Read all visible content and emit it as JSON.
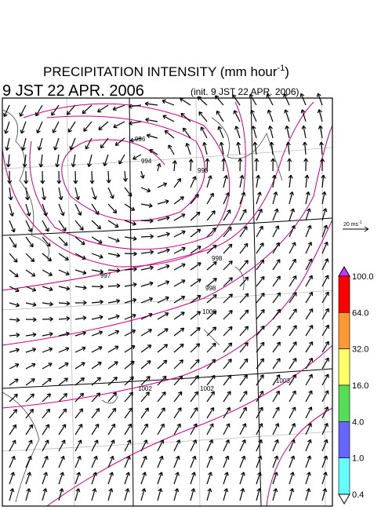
{
  "header": {
    "title": "PRECIPITATION INTENSITY (mm hour",
    "title_sup": "-1",
    "title_end": ")",
    "valid_time": "9 JST 22 APR. 2006",
    "init_time": "(init. 9 JST 22 APR. 2006)"
  },
  "legend": {
    "vector_scale": "20 ms",
    "vector_scale_sup": "-1"
  },
  "colorbar": {
    "labels": [
      "100.0",
      "64.0",
      "32.0",
      "16.0",
      "4.0",
      "1.0",
      "0.4"
    ],
    "colors": [
      "#ff0000",
      "#ff9933",
      "#ffff66",
      "#55dd55",
      "#6666ff",
      "#66ffff"
    ],
    "over_color": "#cc33ff",
    "under_color": "#ffffff"
  },
  "contour_labels": [
    "996",
    "994",
    "996",
    "998",
    "997",
    "998",
    "1000",
    "1002",
    "1002",
    "1003"
  ]
}
